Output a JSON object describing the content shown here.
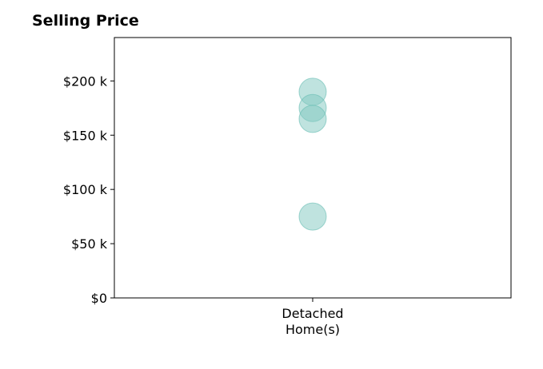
{
  "chart_data": {
    "type": "scatter",
    "title": "Selling Price",
    "xlabel": "",
    "ylabel": "",
    "categories": [
      "Detached\nHome(s)"
    ],
    "series": [
      {
        "category": "Detached\nHome(s)",
        "values": [
          190000,
          175000,
          165000,
          75000
        ]
      }
    ],
    "ylim": [
      0,
      240000
    ],
    "yticks": [
      0,
      50000,
      100000,
      150000,
      200000
    ],
    "ytick_labels": [
      "$0",
      "$50 k",
      "$100 k",
      "$150 k",
      "$200 k"
    ],
    "grid": false,
    "marker_color": "#80c8c0",
    "marker_edge_color": "#66bdb3",
    "marker_alpha": 0.5
  }
}
